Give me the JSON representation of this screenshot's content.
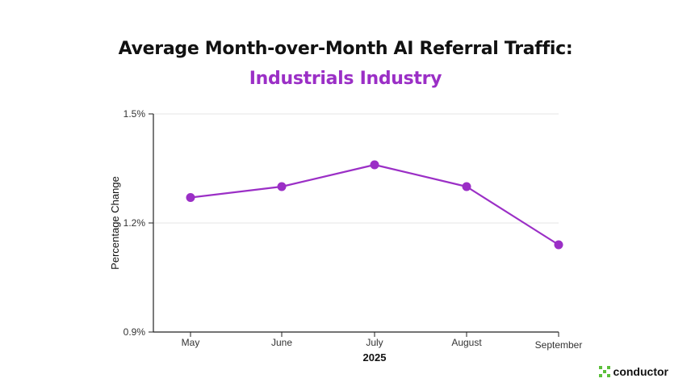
{
  "title": "Average Month-over-Month AI Referral Traffic:",
  "subtitle": "Industrials Industry",
  "brand": "conductor",
  "colors": {
    "title": "#111111",
    "accent": "#9b2fc6",
    "brand": "#5bbf3a"
  },
  "chart_data": {
    "type": "line",
    "categories": [
      "May",
      "June",
      "July",
      "August",
      "September"
    ],
    "series": [
      {
        "values": [
          1.27,
          1.3,
          1.36,
          1.3,
          1.14
        ],
        "color": "#9b2fc6"
      }
    ],
    "xlabel": "2025",
    "ylabel": "Percentage Change",
    "ylim": [
      0.9,
      1.5
    ],
    "yticks": [
      0.9,
      1.2,
      1.5
    ],
    "ytick_labels": [
      "0.9%",
      "1.2%",
      "1.5%"
    ],
    "grid": true,
    "legend": "none"
  }
}
